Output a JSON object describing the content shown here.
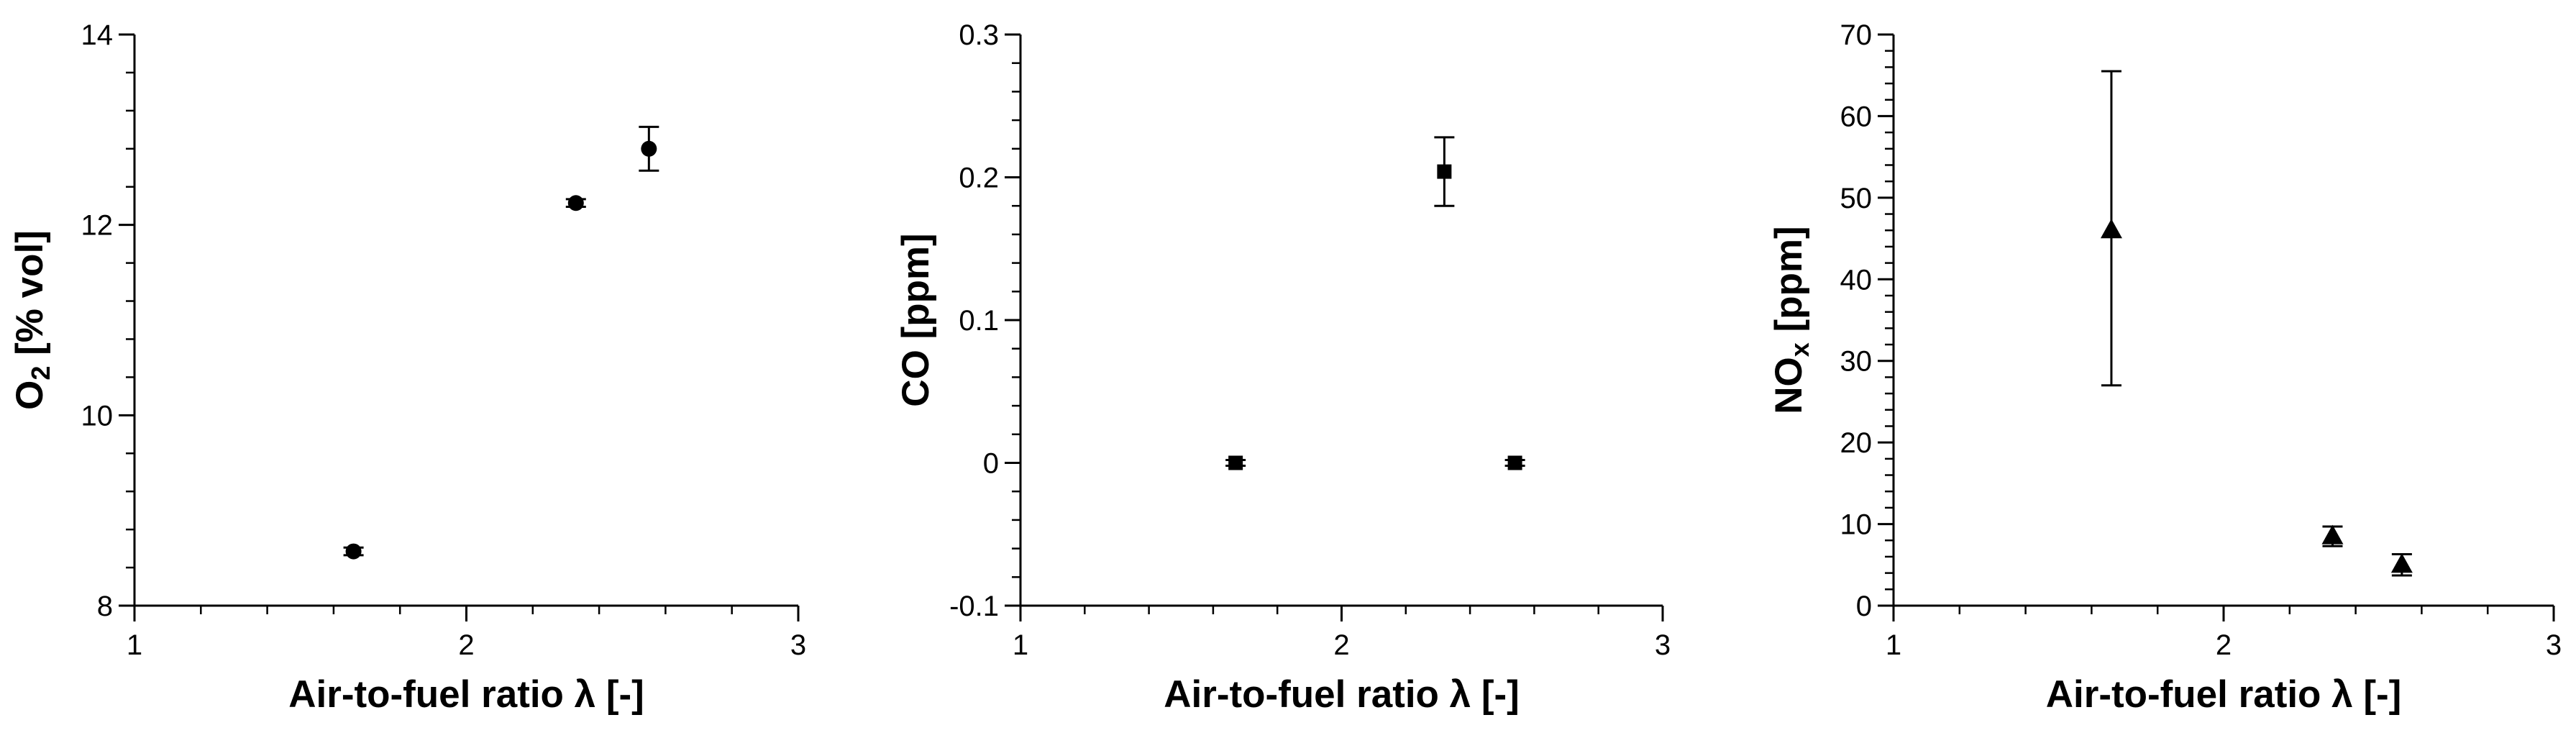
{
  "chart_data": [
    {
      "type": "scatter",
      "marker": "circle",
      "xlabel": "Air-to-fuel ratio λ [-]",
      "ylabel_main": "O",
      "ylabel_sub": "2",
      "ylabel_rest": " [% vol]",
      "xlim": [
        1,
        3
      ],
      "ylim": [
        8,
        14
      ],
      "xticks": [
        1,
        2,
        3
      ],
      "yticks": [
        8,
        10,
        12,
        14
      ],
      "xtick_labels": [
        "1",
        "2",
        "3"
      ],
      "ytick_labels": [
        "8",
        "10",
        "12",
        "14"
      ],
      "series": [
        {
          "x": [
            1.66,
            2.33,
            2.55
          ],
          "y": [
            8.57,
            12.23,
            12.8
          ],
          "err_low": [
            0.04,
            0.04,
            0.23
          ],
          "err_high": [
            0.04,
            0.04,
            0.23
          ]
        }
      ]
    },
    {
      "type": "scatter",
      "marker": "square",
      "xlabel": "Air-to-fuel ratio λ [-]",
      "ylabel_main": "CO",
      "ylabel_sub": "",
      "ylabel_rest": " [ppm]",
      "xlim": [
        1,
        3
      ],
      "ylim": [
        -0.1,
        0.3
      ],
      "xticks": [
        1,
        2,
        3
      ],
      "yticks": [
        -0.1,
        0,
        0.1,
        0.2,
        0.3
      ],
      "xtick_labels": [
        "1",
        "2",
        "3"
      ],
      "ytick_labels": [
        "-0.1",
        "0",
        "0.1",
        "0.2",
        "0.3"
      ],
      "series": [
        {
          "x": [
            1.67,
            2.32,
            2.54
          ],
          "y": [
            0.0,
            0.204,
            0.0
          ],
          "err_low": [
            0.002,
            0.024,
            0.002
          ],
          "err_high": [
            0.002,
            0.024,
            0.002
          ]
        }
      ]
    },
    {
      "type": "scatter",
      "marker": "triangle",
      "xlabel": "Air-to-fuel ratio λ [-]",
      "ylabel_main": "NO",
      "ylabel_sub": "x",
      "ylabel_rest": " [ppm]",
      "xlim": [
        1,
        3
      ],
      "ylim": [
        0,
        70
      ],
      "xticks": [
        1,
        2,
        3
      ],
      "yticks": [
        0,
        10,
        20,
        30,
        40,
        50,
        60,
        70
      ],
      "xtick_labels": [
        "1",
        "2",
        "3"
      ],
      "ytick_labels": [
        "0",
        "10",
        "20",
        "30",
        "40",
        "50",
        "60",
        "70"
      ],
      "series": [
        {
          "x": [
            1.66,
            2.33,
            2.54
          ],
          "y": [
            46,
            8.5,
            5
          ],
          "err_low": [
            19,
            1.2,
            1.3
          ],
          "err_high": [
            19.5,
            1.2,
            1.3
          ]
        }
      ]
    }
  ]
}
